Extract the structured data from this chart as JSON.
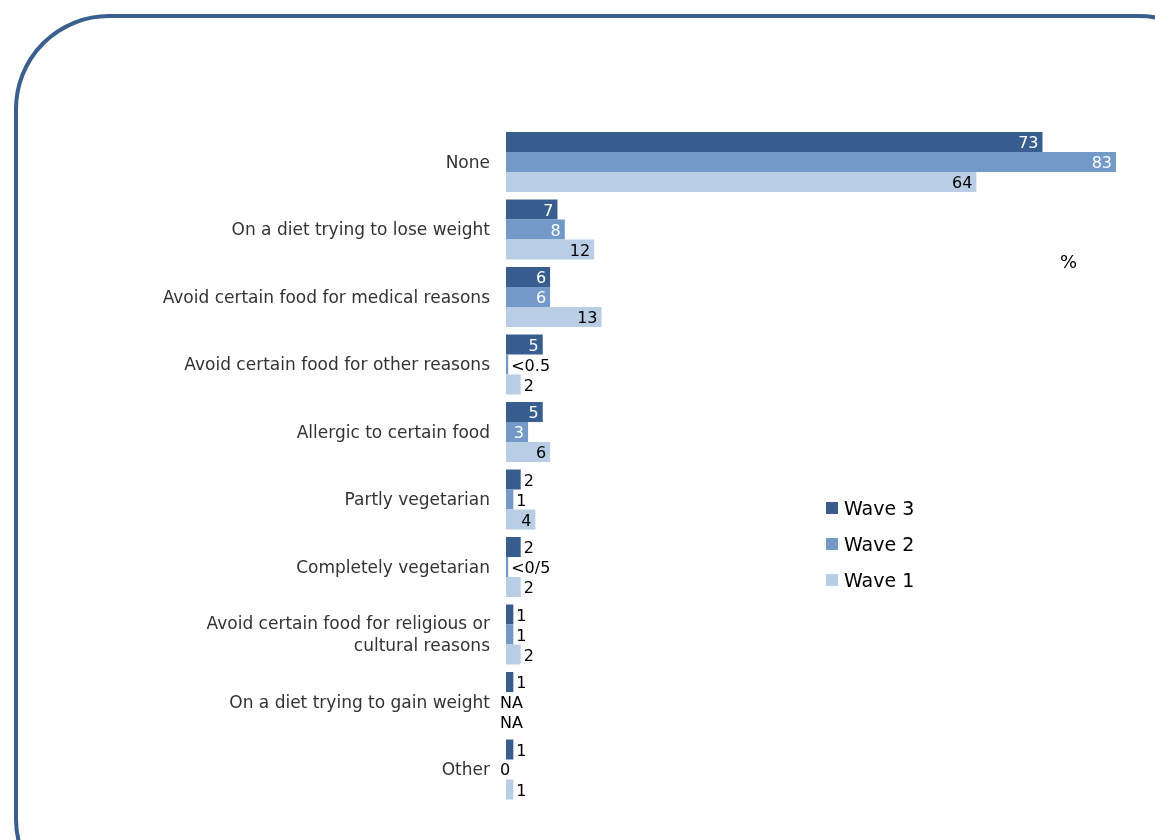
{
  "chart_data": {
    "type": "bar",
    "orientation": "horizontal",
    "legend": "right",
    "annotations": [
      "%"
    ],
    "categories": [
      "None",
      "On a diet trying to lose weight",
      "Avoid certain food for medical reasons",
      "Avoid certain food for other reasons",
      "Allergic to certain food",
      "Partly vegetarian",
      "Completely vegetarian",
      "Avoid certain food for religious or cultural reasons",
      "On a diet trying to gain weight",
      "Other"
    ],
    "series": [
      {
        "name": "Wave 3",
        "color": "#375e8f",
        "values": [
          73,
          7,
          6,
          5,
          5,
          2,
          2,
          1,
          1,
          1
        ],
        "value_labels": [
          "73",
          "7",
          "6",
          "5",
          "5",
          "2",
          "2",
          "1",
          "1",
          "1"
        ]
      },
      {
        "name": "Wave 2",
        "color": "#7399c9",
        "values": [
          83,
          8,
          6,
          0.3,
          3,
          1,
          0.3,
          1,
          null,
          0
        ],
        "value_labels": [
          "83",
          "8",
          "6",
          "<0.5",
          "3",
          "1",
          "<0/5",
          "1",
          "NA",
          "0"
        ]
      },
      {
        "name": "Wave 1",
        "color": "#b9cde5",
        "values": [
          64,
          12,
          13,
          2,
          6,
          4,
          2,
          2,
          null,
          1
        ],
        "value_labels": [
          "64",
          "12",
          "13",
          "2",
          "6",
          "4",
          "2",
          "2",
          "NA",
          "1"
        ]
      }
    ]
  }
}
